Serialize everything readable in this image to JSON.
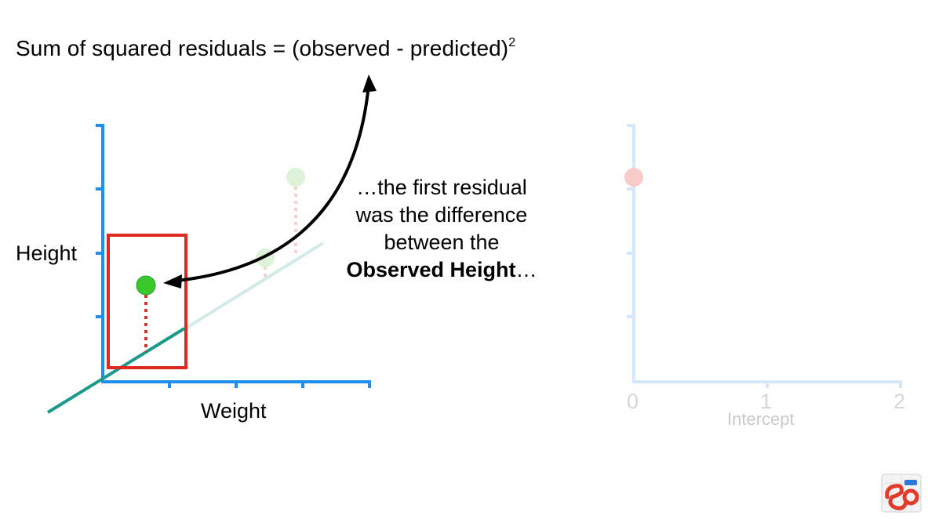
{
  "formula": {
    "text": "Sum of squared residuals = (observed - predicted)",
    "exponent": "2"
  },
  "narration": {
    "line1": "…the first residual",
    "line2": "was the difference",
    "line3": "between the",
    "line4_bold": "Observed Height",
    "line4_tail": "…"
  },
  "left_plot": {
    "y_label": "Height",
    "x_label": "Weight"
  },
  "right_plot": {
    "x_label": "Intercept",
    "x_ticks": [
      "0",
      "1",
      "2"
    ]
  },
  "colors": {
    "axis": "#1f8ff0",
    "axis_faded": "#d3e8fb",
    "fit_line": "#1a9a8a",
    "fit_line_faded": "#d2ebe8",
    "highlight_box": "#de2a20",
    "point": "#39c82e",
    "point_faded": "#ddf2d8",
    "residual": "#d8332a",
    "residual_faded": "#f3d2cc",
    "ssr_point": "#f7cbc7",
    "arrow": "#000000"
  },
  "icons": {
    "logo": "statquest-logo-icon",
    "arrow": "curved-arrow-icon"
  }
}
